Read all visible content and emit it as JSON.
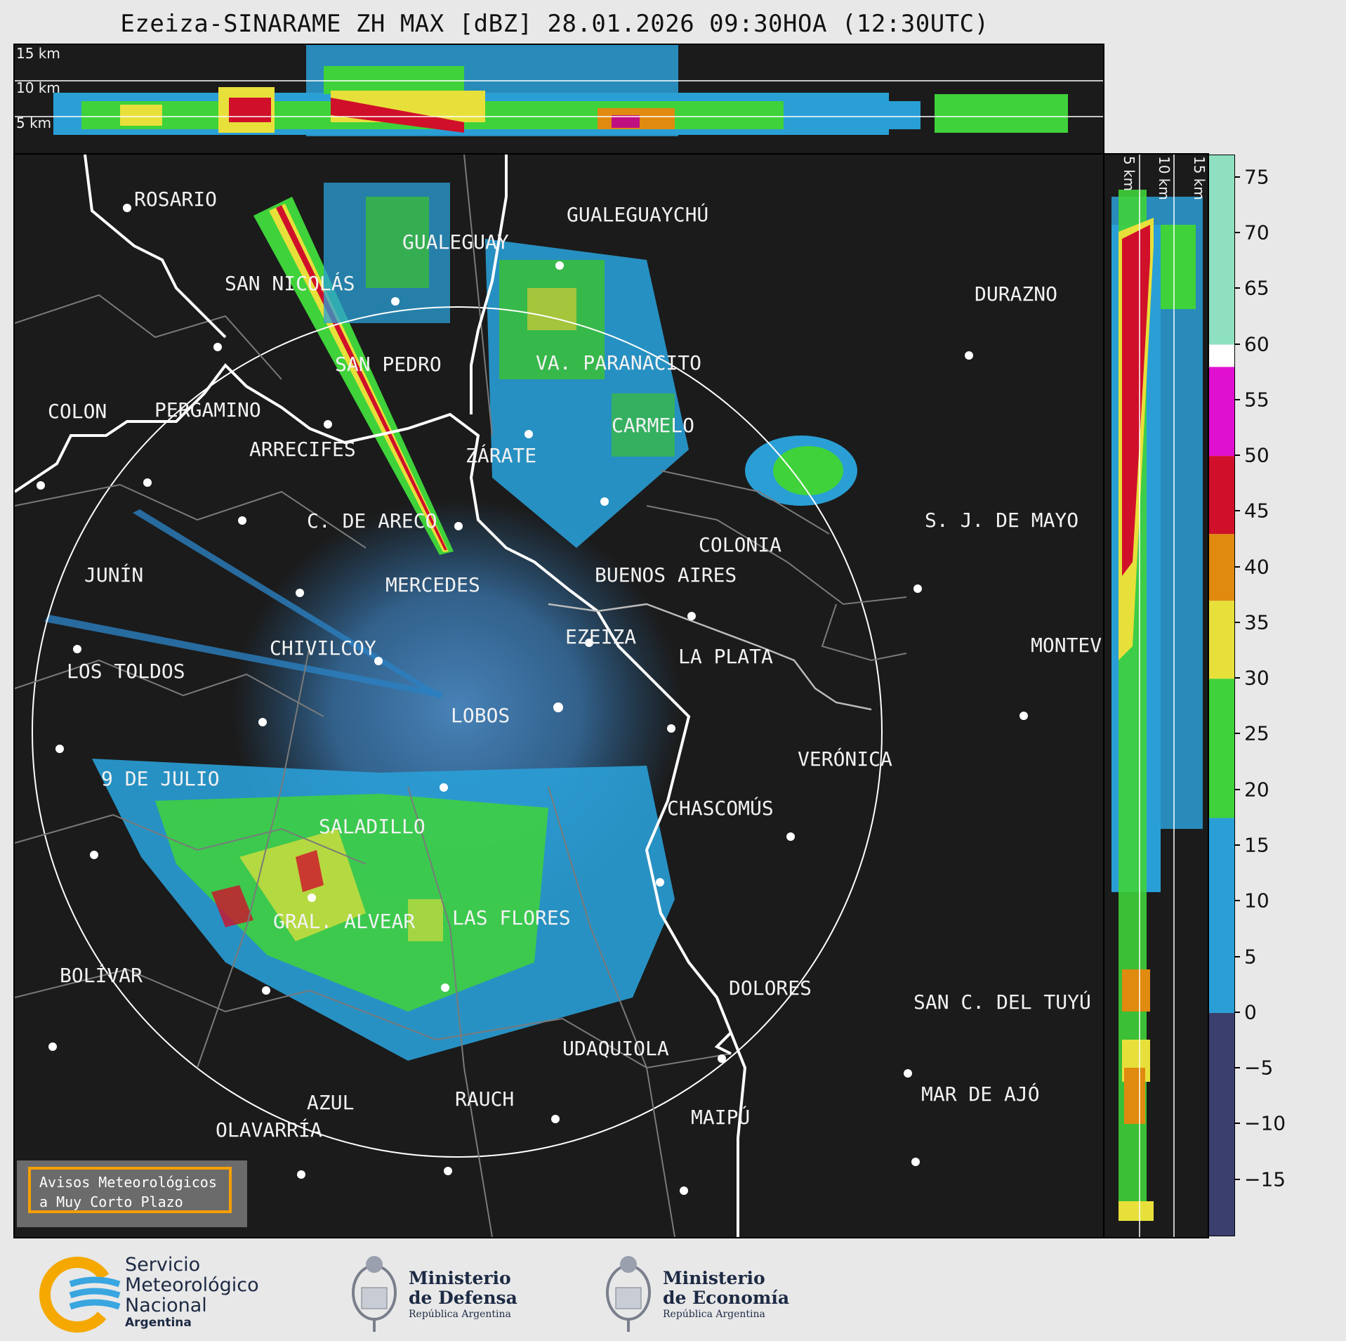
{
  "header": {
    "title": "Ezeiza-SINARAME ZH MAX [dBZ] 28.01.2026 09:30HOA (12:30UTC)"
  },
  "top_profile": {
    "altitude_labels": [
      "15 km",
      "10 km",
      "5 km"
    ]
  },
  "side_profile": {
    "altitude_labels": [
      "5 km",
      "10 km",
      "15 km"
    ]
  },
  "colorbar": {
    "ticks": [
      "75",
      "70",
      "65",
      "60",
      "55",
      "50",
      "45",
      "40",
      "35",
      "30",
      "25",
      "20",
      "15",
      "10",
      "5",
      "0",
      "−5",
      "−10",
      "−15"
    ],
    "range": [
      -20,
      77
    ],
    "colors": {
      "low": "#3a3f6e",
      "blue": "#2a9fd6",
      "green": "#3fd23a",
      "yellow": "#e8e03a",
      "orange": "#e08a10",
      "red": "#d0102a",
      "magenta": "#e010d0",
      "white": "#ffffff",
      "teal": "#8fe0c0"
    }
  },
  "map": {
    "range_ring": "white",
    "cities": [
      {
        "name": "ROSARIO"
      },
      {
        "name": "GUALEGUAYCHÚ"
      },
      {
        "name": "GUALEGUAY"
      },
      {
        "name": "SAN NICOLÁS"
      },
      {
        "name": "DURAZNO"
      },
      {
        "name": "SAN PEDRO"
      },
      {
        "name": "VA. PARANACITO"
      },
      {
        "name": "COLON"
      },
      {
        "name": "PERGAMINO"
      },
      {
        "name": "CARMELO"
      },
      {
        "name": "ARRECIFES"
      },
      {
        "name": "ZÁRATE"
      },
      {
        "name": "C. DE ARECO"
      },
      {
        "name": "S. J. DE MAYO"
      },
      {
        "name": "COLONIA"
      },
      {
        "name": "JUNÍN"
      },
      {
        "name": "BUENOS AIRES"
      },
      {
        "name": "MERCEDES"
      },
      {
        "name": "EZEIZA"
      },
      {
        "name": "MONTEVIDEO"
      },
      {
        "name": "CHIVILCOY"
      },
      {
        "name": "LA PLATA"
      },
      {
        "name": "LOS TOLDOS"
      },
      {
        "name": "LOBOS"
      },
      {
        "name": "VERÓNICA"
      },
      {
        "name": "9 DE JULIO"
      },
      {
        "name": "CHASCOMÚS"
      },
      {
        "name": "SALADILLO"
      },
      {
        "name": "GRAL. ALVEAR"
      },
      {
        "name": "LAS FLORES"
      },
      {
        "name": "BOLÍVAR"
      },
      {
        "name": "DOLORES"
      },
      {
        "name": "SAN C. DEL TUYÚ"
      },
      {
        "name": "UDAQUIOLA"
      },
      {
        "name": "RAUCH"
      },
      {
        "name": "MAR DE AJÓ"
      },
      {
        "name": "AZUL"
      },
      {
        "name": "MAIPÚ"
      },
      {
        "name": "OLAVARRÍA"
      }
    ]
  },
  "warning_box": {
    "line1": "Avisos Meteorológicos",
    "line2": "a Muy Corto Plazo"
  },
  "footer": {
    "smn": {
      "line1": "Servicio",
      "line2": "Meteorológico",
      "line3": "Nacional",
      "line4": "Argentina"
    },
    "defensa": {
      "line1": "Ministerio",
      "line2": "de Defensa",
      "line3": "República Argentina"
    },
    "economia": {
      "line1": "Ministerio",
      "line2": "de Economía",
      "line3": "República Argentina"
    }
  }
}
